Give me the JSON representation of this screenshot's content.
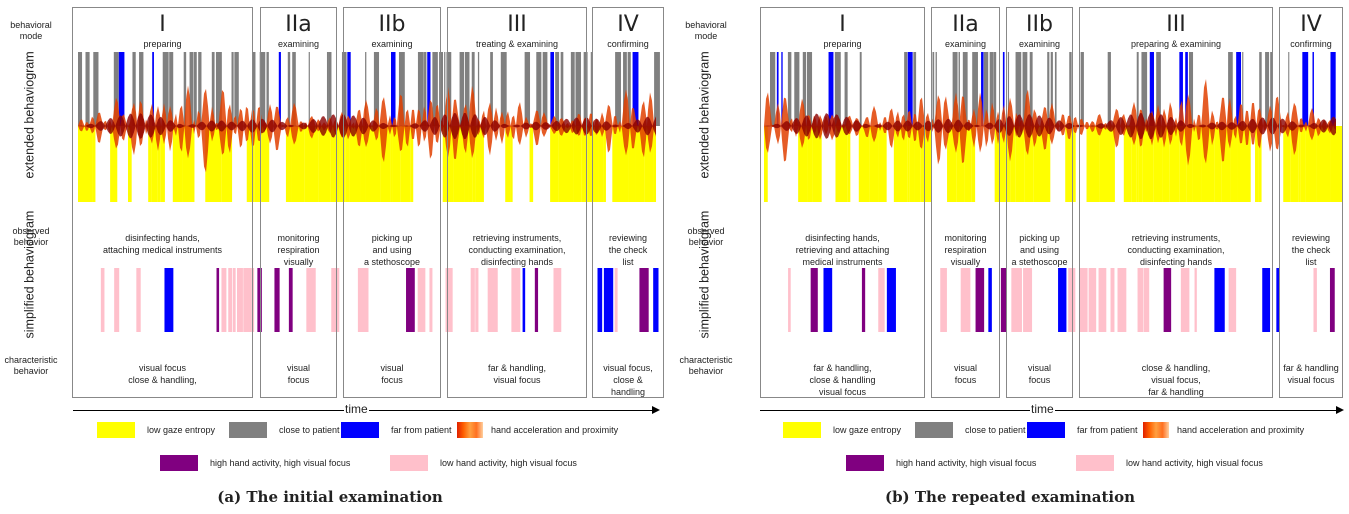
{
  "colors": {
    "gaze": "#ffff00",
    "close": "#808080",
    "far": "#0000ff",
    "high": "#800080",
    "low": "#ffc0cb",
    "hand_dark": "#8b0000",
    "hand_light": "#ffb070"
  },
  "row_labels": {
    "mode": "behavioral\nmode",
    "extended": "extended\nbehaviogram",
    "observed": "observed\nbehavior",
    "simplified": "simplified\nbehaviogram",
    "characteristic": "characteristic\nbehavior"
  },
  "time_label": "time",
  "legend": {
    "gaze": "low gaze entropy",
    "close": "close to patient",
    "far": "far from patient",
    "hand": "hand acceleration and proximity",
    "high": "high hand activity, high visual focus",
    "low": "low hand activity, high visual focus"
  },
  "panels": [
    {
      "caption": "(a) The initial examination",
      "phases": [
        {
          "numeral": "I",
          "mode": "preparing",
          "observed": "disinfecting hands,\nattaching medical instruments",
          "characteristic": "visual focus\nclose & handling,"
        },
        {
          "numeral": "IIa",
          "mode": "examining",
          "observed": "monitoring\nrespiration\nvisually",
          "characteristic": "visual\nfocus"
        },
        {
          "numeral": "IIb",
          "mode": "examining",
          "observed": "picking up\nand using\na stethoscope",
          "characteristic": "visual\nfocus"
        },
        {
          "numeral": "III",
          "mode": "treating & examining",
          "observed": "retrieving instruments,\nconducting examination,\ndisinfecting hands",
          "characteristic": "far & handling,\nvisual focus"
        },
        {
          "numeral": "IV",
          "mode": "confirming",
          "observed": "reviewing\nthe check\nlist",
          "characteristic": "visual focus,\nclose &\nhandling"
        }
      ]
    },
    {
      "caption": "(b) The repeated examination",
      "phases": [
        {
          "numeral": "I",
          "mode": "preparing",
          "observed": "disinfecting hands,\nretrieving and attaching\nmedical instruments",
          "characteristic": "far & handling,\nclose & handling\nvisual focus"
        },
        {
          "numeral": "IIa",
          "mode": "examining",
          "observed": "monitoring\nrespiration\nvisually",
          "characteristic": "visual\nfocus"
        },
        {
          "numeral": "IIb",
          "mode": "examining",
          "observed": "picking up\nand using\na stethoscope",
          "characteristic": "visual\nfocus"
        },
        {
          "numeral": "III",
          "mode": "preparing & examining",
          "observed": "retrieving instruments,\nconducting examination,\ndisinfecting hands",
          "characteristic": "close & handling,\nvisual focus,\nfar & handling"
        },
        {
          "numeral": "IV",
          "mode": "confirming",
          "observed": "reviewing\nthe check\nlist",
          "characteristic": "far & handling\nvisual focus"
        }
      ]
    }
  ]
}
